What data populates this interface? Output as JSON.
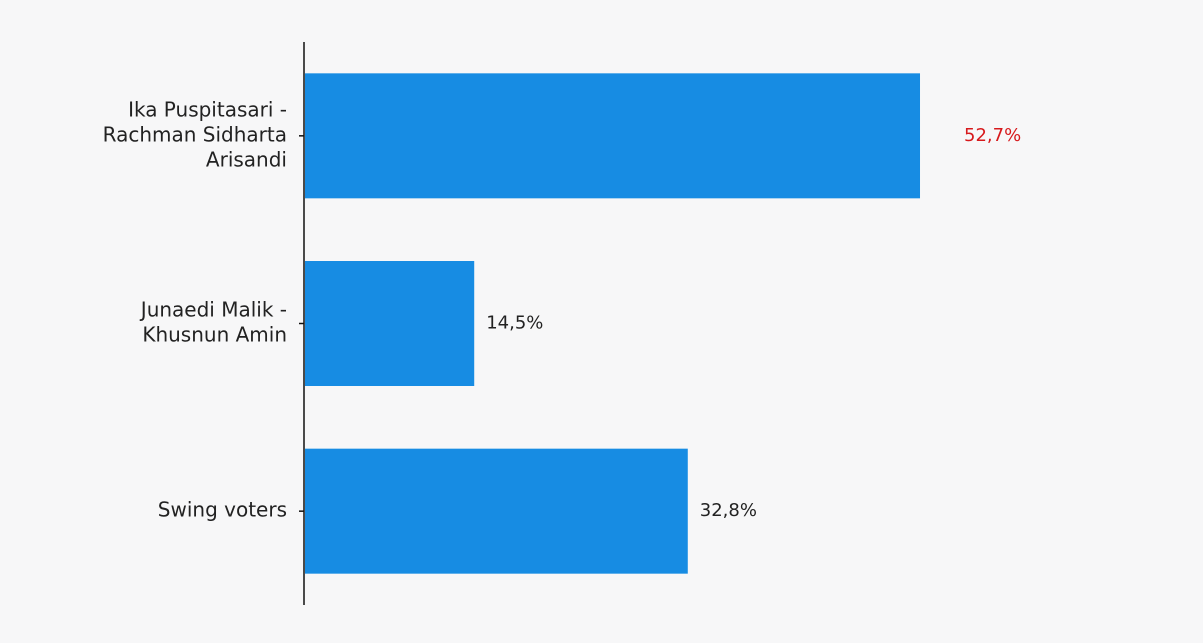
{
  "chart_data": {
    "type": "bar",
    "orientation": "horizontal",
    "categories": [
      [
        "Ika Puspitasari -",
        "Rachman Sidharta",
        "Arisandi"
      ],
      [
        "Junaedi Malik -",
        "Khusnun Amin"
      ],
      [
        "Swing voters"
      ]
    ],
    "values": [
      52.7,
      14.5,
      32.8
    ],
    "value_labels": [
      "52,7%",
      "14,5%",
      "32,8%"
    ],
    "title": "",
    "xlabel": "",
    "ylabel": "",
    "xlim": [
      0,
      100
    ],
    "grid": false,
    "legend": "none",
    "colors": {
      "bar": "#178ce3",
      "value_label": "#222222",
      "value_label_highlight": "#d7191c",
      "category_label": "#222222",
      "axis": "#111111",
      "background": "#f7f7f8"
    },
    "highlight_index": 0
  }
}
